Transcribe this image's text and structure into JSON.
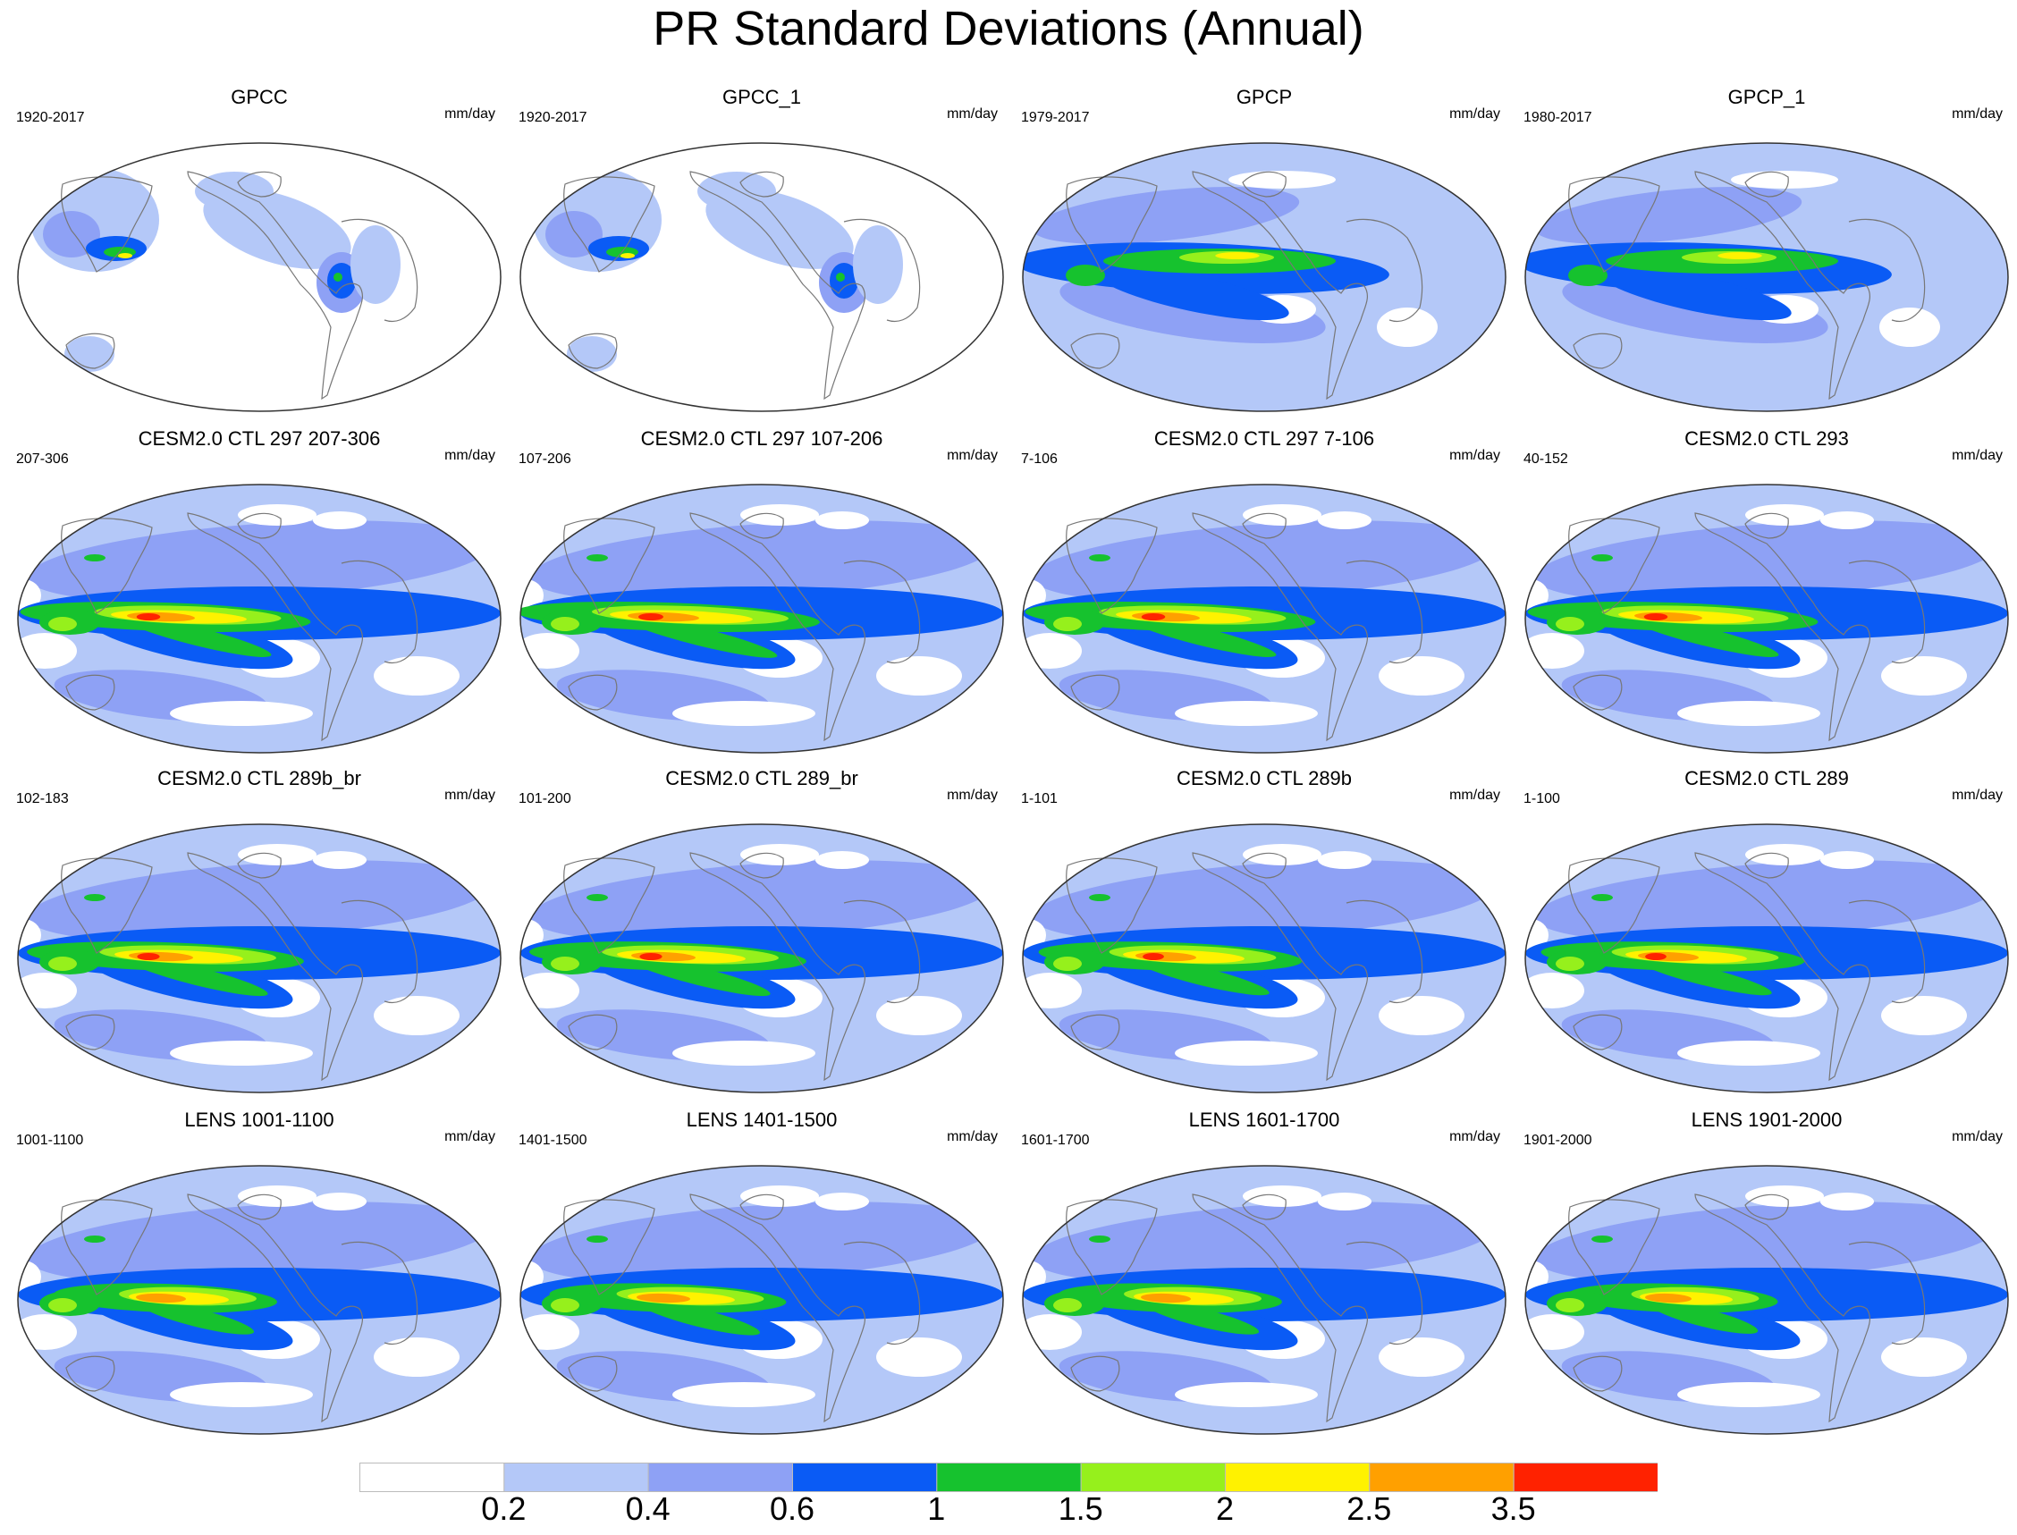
{
  "figure": {
    "title": "PR Standard Deviations (Annual)"
  },
  "panels": [
    {
      "title": "GPCC",
      "left_label": "1920-2017",
      "right_label": "mm/day",
      "kind": "obs_land",
      "intensity": 0.0
    },
    {
      "title": "GPCC_1",
      "left_label": "1920-2017",
      "right_label": "mm/day",
      "kind": "obs_land",
      "intensity": 0.0
    },
    {
      "title": "GPCP",
      "left_label": "1979-2017",
      "right_label": "mm/day",
      "kind": "obs_global",
      "intensity": 0.55
    },
    {
      "title": "GPCP_1",
      "left_label": "1980-2017",
      "right_label": "mm/day",
      "kind": "obs_global",
      "intensity": 0.55
    },
    {
      "title": "CESM2.0 CTL 297 207-306",
      "left_label": "207-306",
      "right_label": "mm/day",
      "kind": "model",
      "intensity": 0.95
    },
    {
      "title": "CESM2.0 CTL 297 107-206",
      "left_label": "107-206",
      "right_label": "mm/day",
      "kind": "model",
      "intensity": 1.0
    },
    {
      "title": "CESM2.0 CTL 297 7-106",
      "left_label": "7-106",
      "right_label": "mm/day",
      "kind": "model",
      "intensity": 0.95
    },
    {
      "title": "CESM2.0 CTL 293",
      "left_label": "40-152",
      "right_label": "mm/day",
      "kind": "model",
      "intensity": 0.95
    },
    {
      "title": "CESM2.0 CTL 289b_br",
      "left_label": "102-183",
      "right_label": "mm/day",
      "kind": "model",
      "intensity": 0.9
    },
    {
      "title": "CESM2.0 CTL 289_br",
      "left_label": "101-200",
      "right_label": "mm/day",
      "kind": "model",
      "intensity": 0.9
    },
    {
      "title": "CESM2.0 CTL 289b",
      "left_label": "1-101",
      "right_label": "mm/day",
      "kind": "model",
      "intensity": 0.85
    },
    {
      "title": "CESM2.0 CTL 289",
      "left_label": "1-100",
      "right_label": "mm/day",
      "kind": "model",
      "intensity": 0.85
    },
    {
      "title": "LENS 1001-1100",
      "left_label": "1001-1100",
      "right_label": "mm/day",
      "kind": "model",
      "intensity": 0.7
    },
    {
      "title": "LENS 1401-1500",
      "left_label": "1401-1500",
      "right_label": "mm/day",
      "kind": "model",
      "intensity": 0.75
    },
    {
      "title": "LENS 1601-1700",
      "left_label": "1601-1700",
      "right_label": "mm/day",
      "kind": "model",
      "intensity": 0.7
    },
    {
      "title": "LENS 1901-2000",
      "left_label": "1901-2000",
      "right_label": "mm/day",
      "kind": "model",
      "intensity": 0.65
    }
  ],
  "colorbar": {
    "levels": [
      "0.2",
      "0.4",
      "0.6",
      "1",
      "1.5",
      "2",
      "2.5",
      "3.5"
    ],
    "colors": [
      "#ffffff",
      "#b4c8f8",
      "#8ea1f5",
      "#0a5bf5",
      "#16c22e",
      "#96f01c",
      "#fff200",
      "#ffa000",
      "#ff2200"
    ]
  }
}
